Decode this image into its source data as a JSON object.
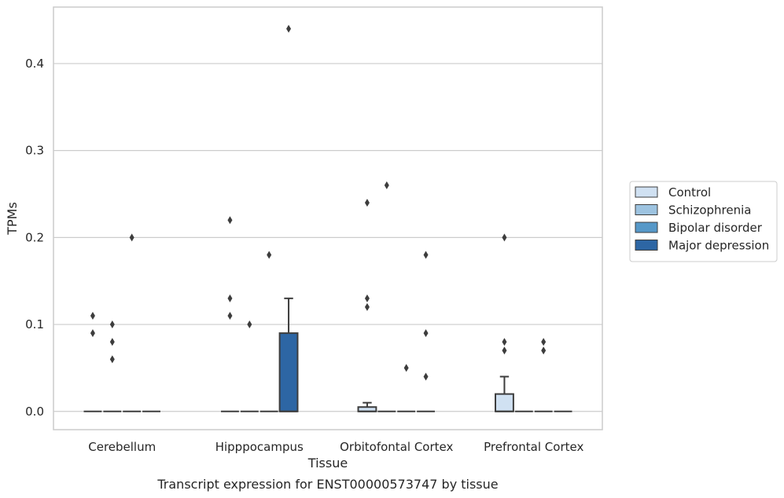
{
  "chart_data": {
    "type": "box",
    "title": "",
    "caption": "Transcript expression for ENST00000573747 by tissue",
    "xlabel": "Tissue",
    "ylabel": "TPMs",
    "ylim": [
      -0.021,
      0.465
    ],
    "yticks": [
      "0.0",
      "0.1",
      "0.2",
      "0.3",
      "0.4"
    ],
    "ytick_values": [
      0.0,
      0.1,
      0.2,
      0.3,
      0.4
    ],
    "grid": true,
    "legend_placement": "right",
    "categories": [
      "Cerebellum",
      "Hipppocampus",
      "Orbitofontal Cortex",
      "Prefrontal Cortex"
    ],
    "series": [
      {
        "name": "Control",
        "color": "#d0e1f2",
        "boxes": [
          {
            "q1": 0,
            "median": 0,
            "q3": 0,
            "whislo": 0,
            "whishi": 0,
            "fliers": [
              0.11,
              0.09
            ]
          },
          {
            "q1": 0,
            "median": 0,
            "q3": 0,
            "whislo": 0,
            "whishi": 0,
            "fliers": [
              0.22,
              0.13,
              0.11
            ]
          },
          {
            "q1": 0,
            "median": 0,
            "q3": 0.005,
            "whislo": 0,
            "whishi": 0.01,
            "fliers": [
              0.24,
              0.13,
              0.12
            ]
          },
          {
            "q1": 0,
            "median": 0,
            "q3": 0.02,
            "whislo": 0,
            "whishi": 0.04,
            "fliers": [
              0.2,
              0.08,
              0.07
            ]
          }
        ]
      },
      {
        "name": "Schizophrenia",
        "color": "#9dc3e0",
        "boxes": [
          {
            "q1": 0,
            "median": 0,
            "q3": 0,
            "whislo": 0,
            "whishi": 0,
            "fliers": [
              0.1,
              0.08,
              0.06
            ]
          },
          {
            "q1": 0,
            "median": 0,
            "q3": 0,
            "whislo": 0,
            "whishi": 0,
            "fliers": [
              0.1
            ]
          },
          {
            "q1": 0,
            "median": 0,
            "q3": 0,
            "whislo": 0,
            "whishi": 0,
            "fliers": [
              0.26
            ]
          },
          {
            "q1": 0,
            "median": 0,
            "q3": 0,
            "whislo": 0,
            "whishi": 0,
            "fliers": []
          }
        ]
      },
      {
        "name": "Bipolar disorder",
        "color": "#5698c8",
        "boxes": [
          {
            "q1": 0,
            "median": 0,
            "q3": 0,
            "whislo": 0,
            "whishi": 0,
            "fliers": [
              0.2
            ]
          },
          {
            "q1": 0,
            "median": 0,
            "q3": 0,
            "whislo": 0,
            "whishi": 0,
            "fliers": [
              0.18
            ]
          },
          {
            "q1": 0,
            "median": 0,
            "q3": 0,
            "whislo": 0,
            "whishi": 0,
            "fliers": [
              0.05
            ]
          },
          {
            "q1": 0,
            "median": 0,
            "q3": 0,
            "whislo": 0,
            "whishi": 0,
            "fliers": [
              0.08,
              0.07
            ]
          }
        ]
      },
      {
        "name": "Major depression",
        "color": "#2d66a4",
        "boxes": [
          {
            "q1": 0,
            "median": 0,
            "q3": 0,
            "whislo": 0,
            "whishi": 0,
            "fliers": []
          },
          {
            "q1": 0,
            "median": 0,
            "q3": 0.09,
            "whislo": 0,
            "whishi": 0.13,
            "fliers": [
              0.44
            ]
          },
          {
            "q1": 0,
            "median": 0,
            "q3": 0,
            "whislo": 0,
            "whishi": 0,
            "fliers": [
              0.18,
              0.09,
              0.04
            ]
          },
          {
            "q1": 0,
            "median": 0,
            "q3": 0,
            "whislo": 0,
            "whishi": 0,
            "fliers": []
          }
        ]
      }
    ]
  }
}
